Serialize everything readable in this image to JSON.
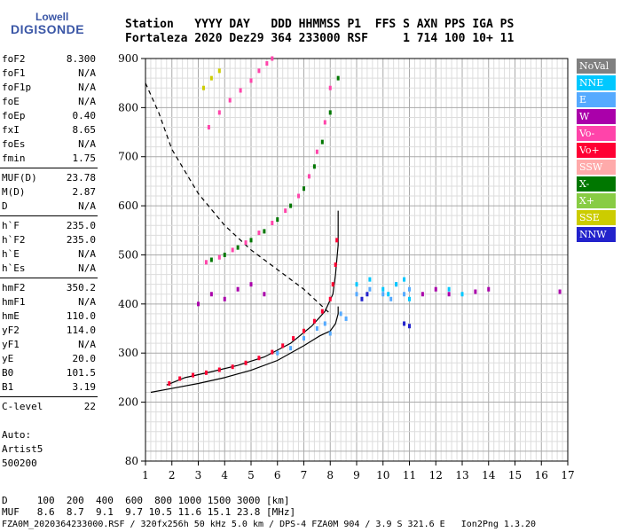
{
  "logo": {
    "line1": "Lowell",
    "line2": "DIGISONDE"
  },
  "header": {
    "line1": "Station   YYYY DAY   DDD HHMMSS P1  FFS S AXN PPS IGA PS",
    "line2": "Fortaleza 2020 Dez29 364 233000 RSF     1 714 100 10+ 11"
  },
  "params": [
    [
      {
        "n": "foF2",
        "v": "8.300"
      },
      {
        "n": "foF1",
        "v": "N/A"
      },
      {
        "n": "foF1p",
        "v": "N/A"
      },
      {
        "n": "foE",
        "v": "N/A"
      },
      {
        "n": "foEp",
        "v": "0.40"
      },
      {
        "n": "fxI",
        "v": "8.65"
      },
      {
        "n": "foEs",
        "v": "N/A"
      },
      {
        "n": "fmin",
        "v": "1.75"
      }
    ],
    [
      {
        "n": "MUF(D)",
        "v": "23.78"
      },
      {
        "n": "M(D)",
        "v": "2.87"
      },
      {
        "n": "D",
        "v": "N/A"
      }
    ],
    [
      {
        "n": "h`F",
        "v": "235.0"
      },
      {
        "n": "h`F2",
        "v": "235.0"
      },
      {
        "n": "h`E",
        "v": "N/A"
      },
      {
        "n": "h`Es",
        "v": "N/A"
      }
    ],
    [
      {
        "n": "hmF2",
        "v": "350.2"
      },
      {
        "n": "hmF1",
        "v": "N/A"
      },
      {
        "n": "hmE",
        "v": "110.0"
      },
      {
        "n": "yF2",
        "v": "114.0"
      },
      {
        "n": "yF1",
        "v": "N/A"
      },
      {
        "n": "yE",
        "v": "20.0"
      },
      {
        "n": "B0",
        "v": "101.5"
      },
      {
        "n": "B1",
        "v": "3.19"
      }
    ],
    [
      {
        "n": "C-level",
        "v": "22"
      }
    ]
  ],
  "auto": {
    "l1": "Auto:",
    "l2": "Artist5",
    "l3": "500200"
  },
  "legend": [
    {
      "label": "NoVal",
      "color": "#808080"
    },
    {
      "label": "NNE",
      "color": "#00c8ff"
    },
    {
      "label": "E",
      "color": "#55aaff"
    },
    {
      "label": "W",
      "color": "#aa00aa"
    },
    {
      "label": "Vo-",
      "color": "#ff44aa"
    },
    {
      "label": "Vo+",
      "color": "#ff0033"
    },
    {
      "label": "SSW",
      "color": "#ffaaaa"
    },
    {
      "label": "X-",
      "color": "#007700"
    },
    {
      "label": "X+",
      "color": "#88cc44"
    },
    {
      "label": "SSE",
      "color": "#cccc00"
    },
    {
      "label": "NNW",
      "color": "#2222cc"
    }
  ],
  "bottom": {
    "line1": "D     100  200  400  600  800 1000 1500 3000 [km]",
    "line2": "MUF   8.6  8.7  9.1  9.7 10.5 11.6 15.1 23.8 [MHz]",
    "line3": "FZA0M_2020364233000.RSF / 320fx256h 50 kHz 5.0 km / DPS-4 FZA0M 904 / 3.9 S 321.6 E   Ion2Png 1.3.20"
  },
  "chart_data": {
    "type": "scatter",
    "title": "",
    "xlabel": "",
    "ylabel": "",
    "xlim": [
      1,
      17
    ],
    "ylim": [
      80,
      900
    ],
    "x_ticks": [
      1,
      2,
      3,
      4,
      5,
      6,
      7,
      8,
      9,
      10,
      11,
      12,
      13,
      14,
      15,
      16,
      17
    ],
    "y_ticks": [
      80,
      200,
      300,
      400,
      500,
      600,
      700,
      800,
      900
    ],
    "grid": true,
    "series": [
      {
        "color": "#000000",
        "style": "solid",
        "x": [
          1.2,
          2.0,
          3.0,
          4.0,
          5.0,
          6.0,
          7.0,
          7.6,
          8.0,
          8.2,
          8.3,
          8.3
        ],
        "y": [
          220,
          228,
          238,
          250,
          265,
          285,
          315,
          335,
          345,
          360,
          380,
          395
        ]
      },
      {
        "color": "#000000",
        "style": "dashed",
        "x": [
          1.0,
          1.5,
          2.0,
          3.0,
          4.0,
          5.0,
          6.0,
          7.0,
          7.6,
          8.0
        ],
        "y": [
          850,
          790,
          715,
          625,
          560,
          510,
          470,
          430,
          400,
          380
        ]
      },
      {
        "color": "#000000",
        "style": "solid",
        "x": [
          1.8,
          2.5,
          3.5,
          4.5,
          5.5,
          6.5,
          7.3,
          7.8,
          8.1,
          8.2,
          8.3,
          8.3
        ],
        "y": [
          235,
          250,
          262,
          275,
          292,
          320,
          355,
          385,
          420,
          460,
          520,
          590
        ]
      },
      {
        "color": "#ff0033",
        "style": "points",
        "x": [
          1.9,
          2.3,
          2.8,
          3.3,
          3.8,
          4.3,
          4.8,
          5.3,
          5.8,
          6.2,
          6.6,
          7.0,
          7.4,
          7.7,
          8.0,
          8.1,
          8.2,
          8.25
        ],
        "y": [
          238,
          248,
          255,
          260,
          266,
          272,
          280,
          290,
          302,
          315,
          330,
          345,
          365,
          385,
          410,
          440,
          480,
          530
        ]
      },
      {
        "color": "#ff44aa",
        "style": "points",
        "x": [
          3.3,
          3.8,
          4.3,
          4.8,
          5.3,
          5.8,
          6.3,
          6.8,
          7.2,
          7.5,
          7.8,
          8.0
        ],
        "y": [
          485,
          495,
          510,
          525,
          545,
          565,
          590,
          620,
          660,
          710,
          770,
          840
        ]
      },
      {
        "color": "#007700",
        "style": "points",
        "x": [
          3.5,
          4.0,
          4.5,
          5.0,
          5.5,
          6.0,
          6.5,
          7.0,
          7.4,
          7.7,
          8.0,
          8.3
        ],
        "y": [
          490,
          500,
          515,
          530,
          548,
          572,
          600,
          635,
          680,
          730,
          790,
          860
        ]
      },
      {
        "color": "#ff44aa",
        "style": "points",
        "x": [
          3.4,
          3.8,
          4.2,
          4.6,
          5.0,
          5.3,
          5.6,
          5.8
        ],
        "y": [
          760,
          790,
          815,
          835,
          855,
          875,
          890,
          900
        ]
      },
      {
        "color": "#cccc00",
        "style": "points",
        "x": [
          3.2,
          3.5,
          3.8
        ],
        "y": [
          840,
          860,
          875
        ]
      },
      {
        "color": "#55aaff",
        "style": "points",
        "x": [
          6.0,
          6.5,
          7.0,
          7.5,
          7.8,
          8.0,
          8.4,
          8.6,
          9.0,
          9.5,
          10.0,
          10.3,
          10.5,
          10.8,
          11.0
        ],
        "y": [
          300,
          310,
          330,
          350,
          360,
          340,
          380,
          370,
          420,
          430,
          420,
          410,
          440,
          420,
          430
        ]
      },
      {
        "color": "#00c8ff",
        "style": "points",
        "x": [
          9.0,
          9.5,
          10.0,
          10.2,
          10.5,
          10.8,
          11.0,
          12.5,
          13.0
        ],
        "y": [
          440,
          450,
          430,
          420,
          440,
          450,
          410,
          430,
          420
        ]
      },
      {
        "color": "#aa00aa",
        "style": "points",
        "x": [
          3.0,
          3.5,
          4.0,
          4.5,
          5.0,
          5.5,
          11.5,
          12.0,
          12.5,
          13.5,
          14.0,
          16.7
        ],
        "y": [
          400,
          420,
          410,
          430,
          440,
          420,
          420,
          430,
          420,
          425,
          430,
          425
        ]
      },
      {
        "color": "#2222cc",
        "style": "points",
        "x": [
          9.2,
          9.4,
          10.8,
          11.0
        ],
        "y": [
          410,
          420,
          360,
          355
        ]
      }
    ]
  }
}
